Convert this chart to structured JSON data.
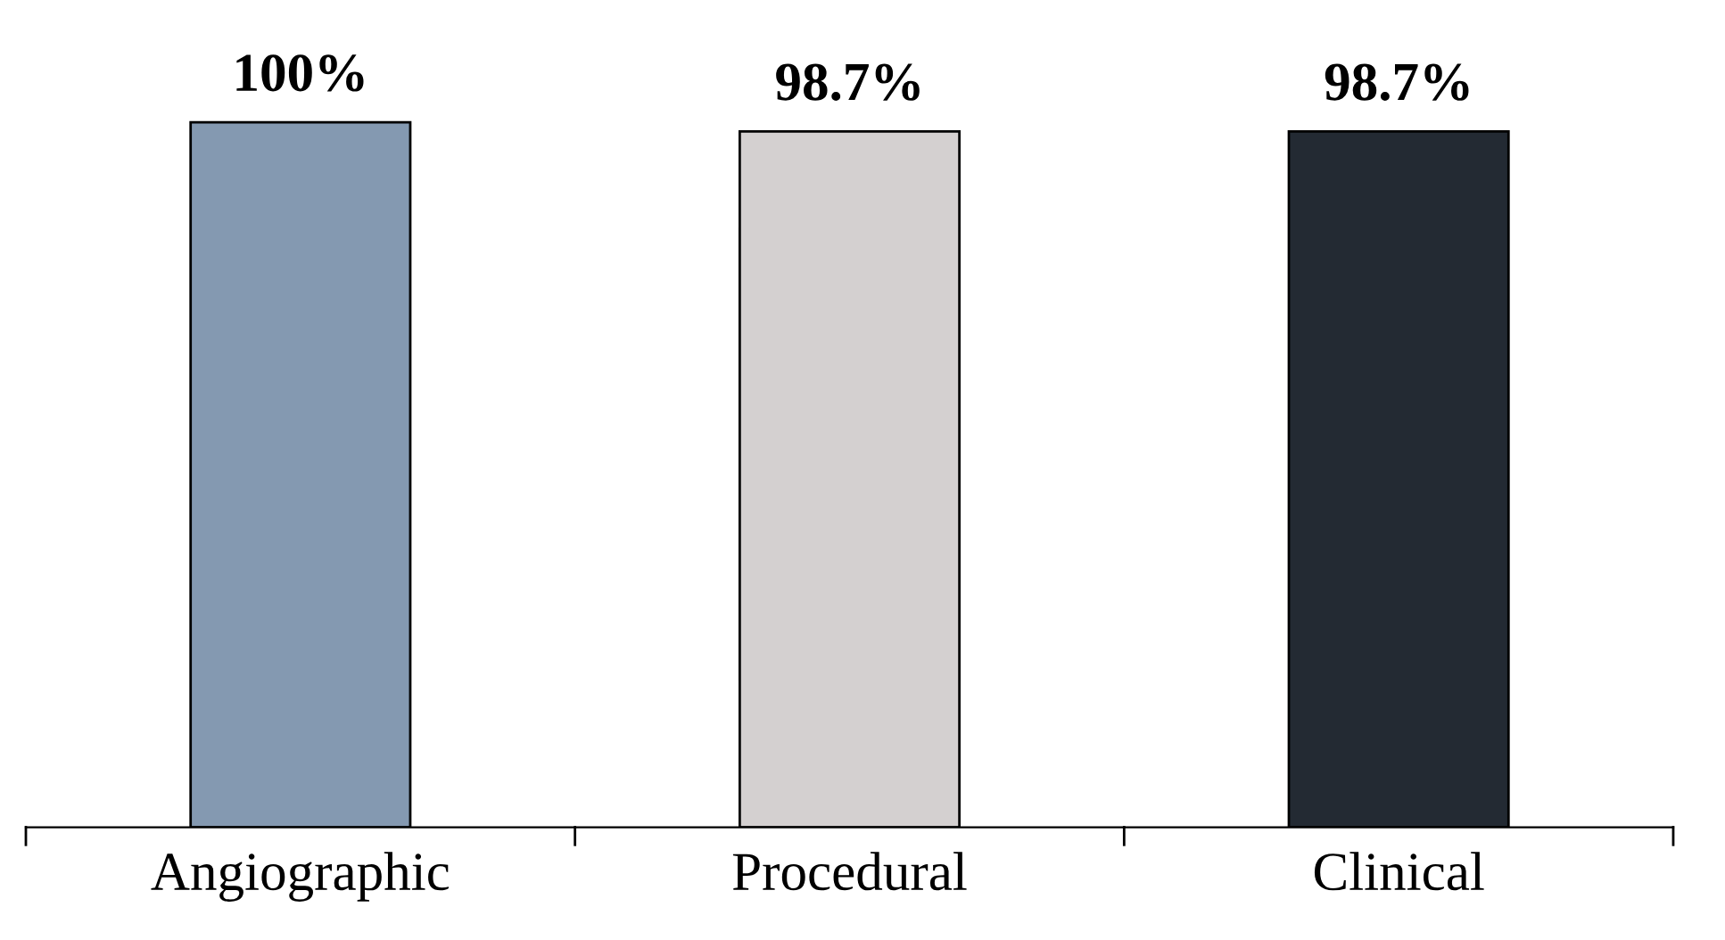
{
  "chart_data": {
    "type": "bar",
    "categories": [
      "Angiographic",
      "Procedural",
      "Clinical"
    ],
    "values": [
      100,
      98.7,
      98.7
    ],
    "colors": [
      "#8499b1",
      "#d4d0d0",
      "#232a33"
    ],
    "value_labels": [
      "100%",
      "98.7%",
      "98.7%"
    ],
    "grid": false,
    "legend": false
  }
}
